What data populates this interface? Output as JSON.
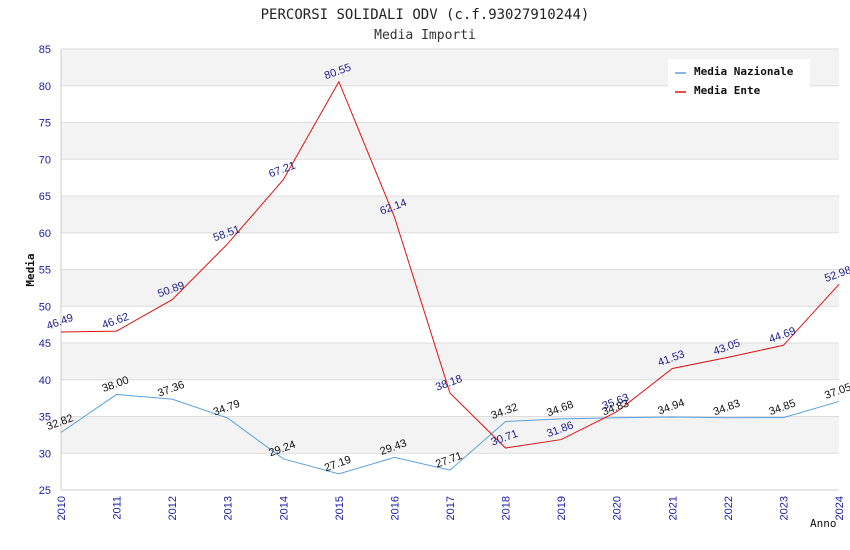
{
  "chart_data": {
    "type": "line",
    "title": "PERCORSI SOLIDALI ODV (c.f.93027910244)",
    "subtitle": "Media Importi",
    "xlabel": "Anno",
    "ylabel": "Media",
    "ylim": [
      25,
      85
    ],
    "yticks": [
      25,
      30,
      35,
      40,
      45,
      50,
      55,
      60,
      65,
      70,
      75,
      80,
      85
    ],
    "categories": [
      "2010",
      "2011",
      "2012",
      "2013",
      "2014",
      "2015",
      "2016",
      "2017",
      "2018",
      "2019",
      "2020",
      "2021",
      "2022",
      "2023",
      "2024"
    ],
    "series": [
      {
        "name": "Media Nazionale",
        "color": "#5aa0dc",
        "values": [
          32.82,
          38.0,
          37.36,
          34.79,
          29.24,
          27.19,
          29.43,
          27.71,
          34.32,
          34.68,
          34.83,
          34.94,
          34.83,
          34.85,
          37.05
        ],
        "labels": [
          "32.82",
          "38.00",
          "37.36",
          "34.79",
          "29.24",
          "27.19",
          "29.43",
          "27.71",
          "34.32",
          "34.68",
          "34.83",
          "34.94",
          "34.83",
          "34.85",
          "37.05"
        ]
      },
      {
        "name": "Media Ente",
        "color": "#dd1111",
        "values": [
          46.49,
          46.62,
          50.89,
          58.51,
          67.21,
          80.55,
          62.14,
          38.18,
          30.71,
          31.86,
          35.63,
          41.53,
          43.05,
          44.69,
          52.98
        ],
        "labels": [
          "46.49",
          "46.62",
          "50.89",
          "58.51",
          "67.21",
          "80.55",
          "62.14",
          "38.18",
          "30.71",
          "31.86",
          "35.63",
          "41.53",
          "43.05",
          "44.69",
          "52.98"
        ]
      }
    ],
    "legend_position": "top-right",
    "grid": true
  }
}
